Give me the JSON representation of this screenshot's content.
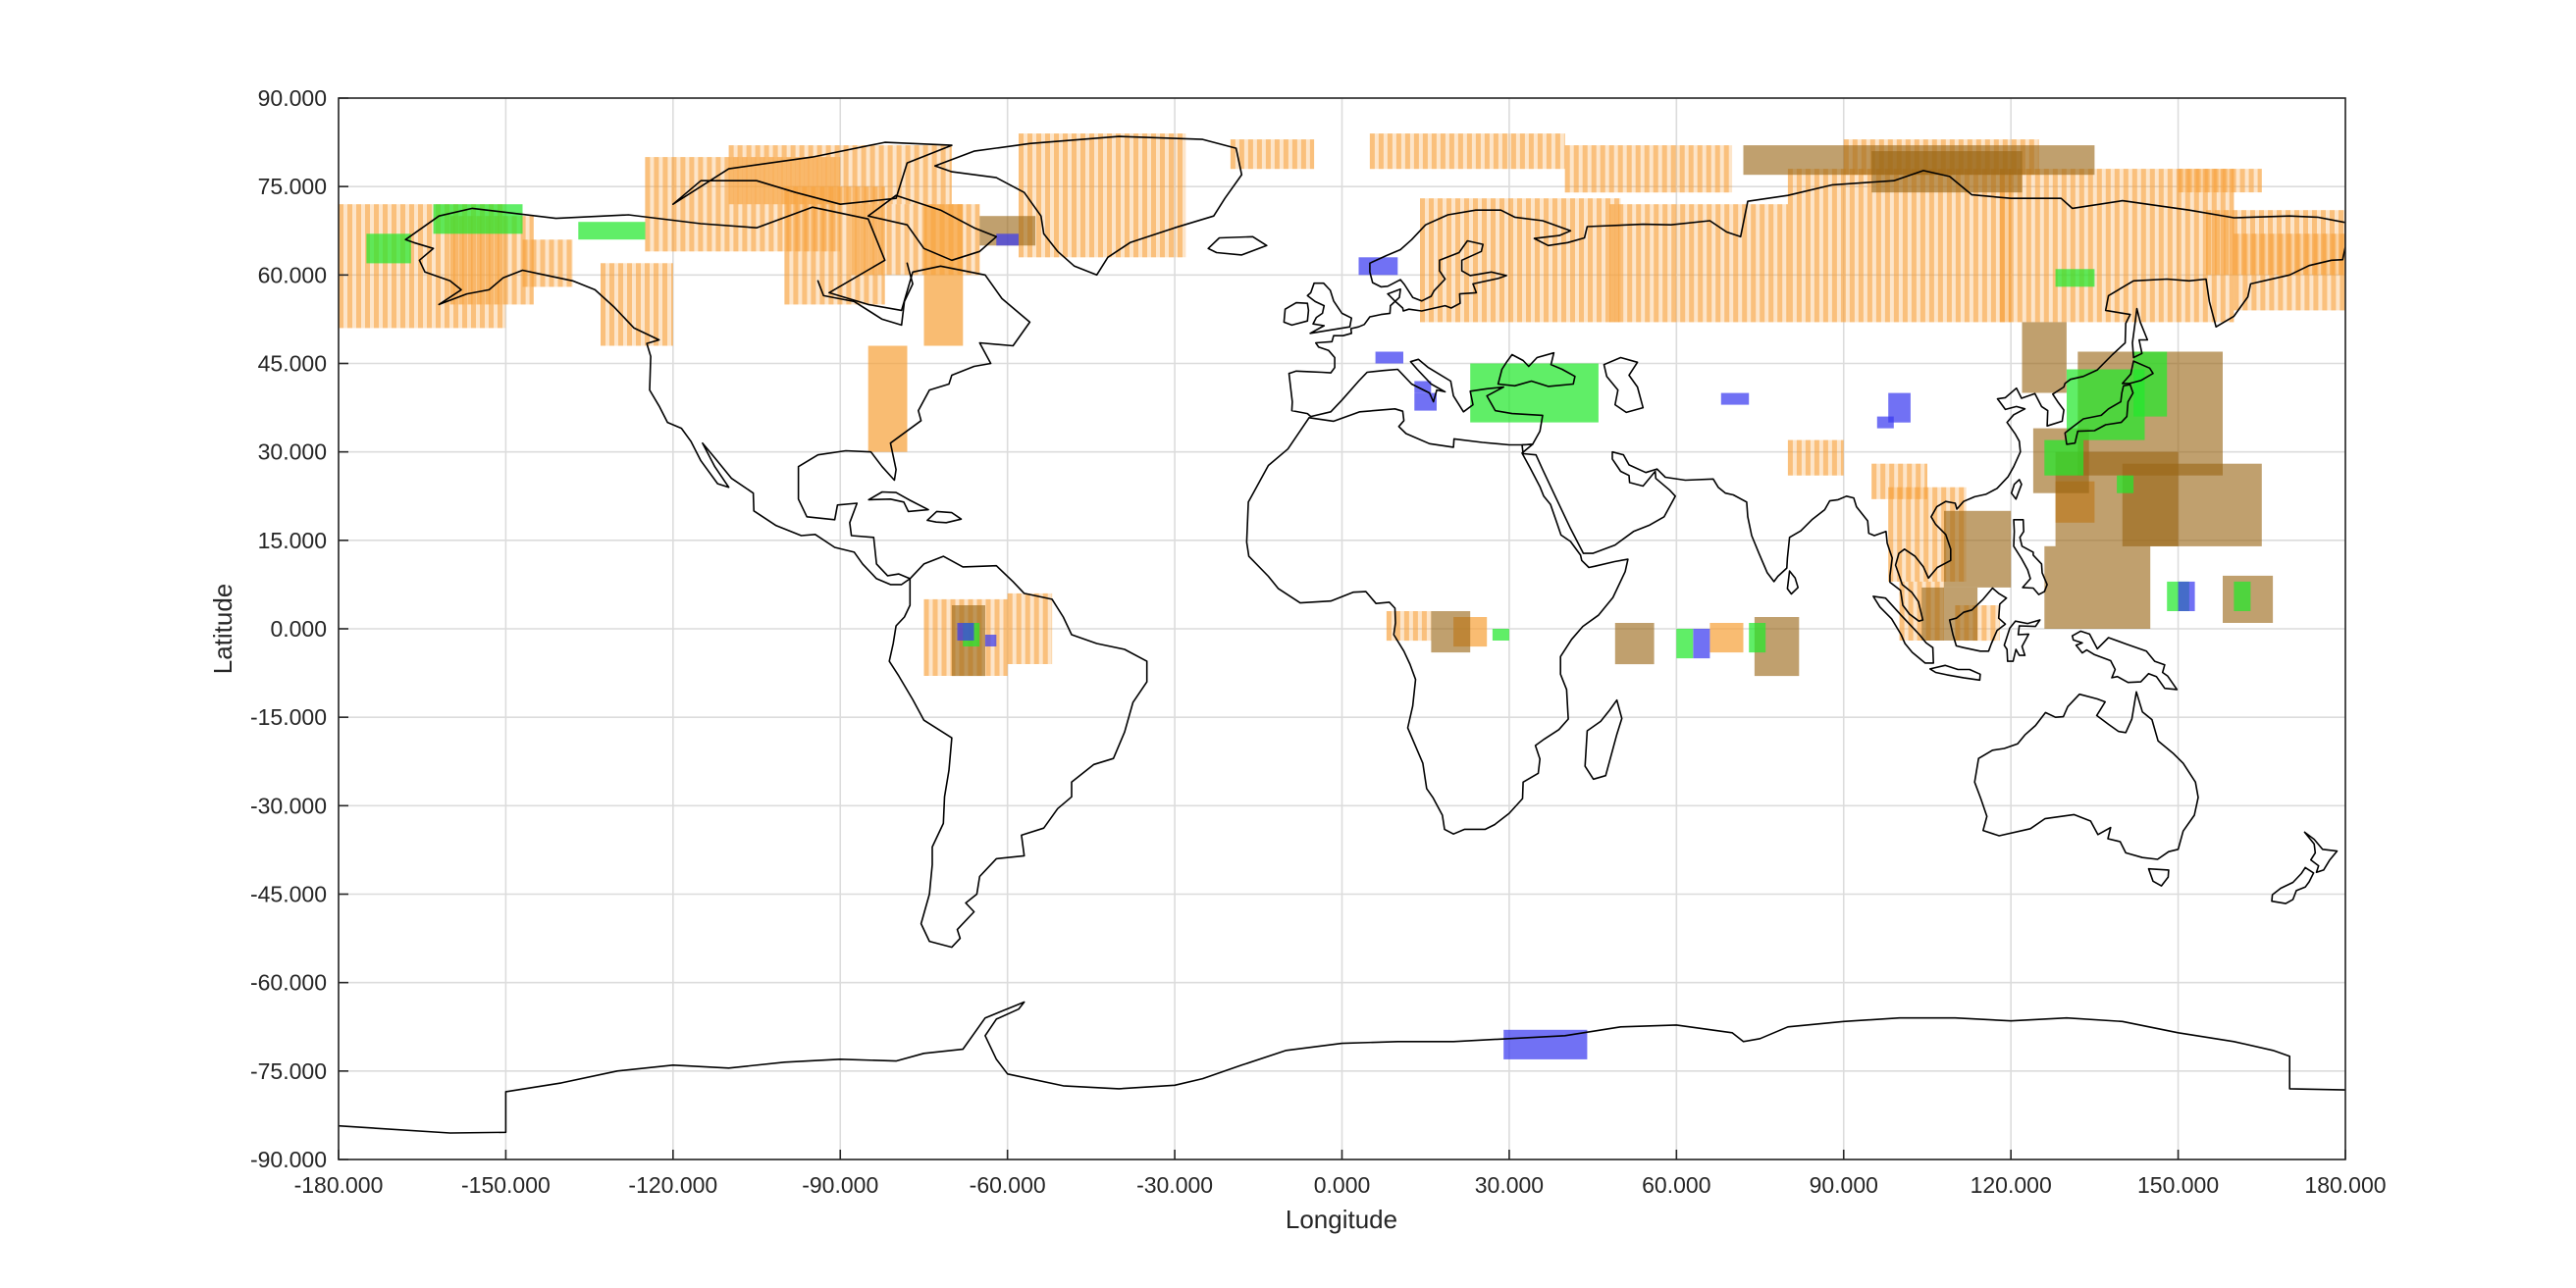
{
  "chart_data": {
    "type": "map",
    "xlabel": "Longitude",
    "ylabel": "Latitude",
    "xlim": [
      -180,
      180
    ],
    "ylim": [
      -90,
      90
    ],
    "x_ticks": [
      "-180.000",
      "-150.000",
      "-120.000",
      "-90.000",
      "-60.000",
      "-30.000",
      "0.000",
      "30.000",
      "60.000",
      "90.000",
      "120.000",
      "150.000",
      "180.000"
    ],
    "y_ticks": [
      "90.000",
      "75.000",
      "60.000",
      "45.000",
      "30.000",
      "15.000",
      "0.000",
      "-15.000",
      "-30.000",
      "-45.000",
      "-60.000",
      "-75.000",
      "-90.000"
    ],
    "grid": true,
    "legend": "none",
    "series": [
      {
        "color": "#f7a23c",
        "footprints": [
          [
            -180,
            51,
            -150,
            72
          ],
          [
            -160,
            55,
            -145,
            70
          ],
          [
            -147,
            58,
            -138,
            66
          ],
          [
            -133,
            48,
            -120,
            62
          ],
          [
            -125,
            64,
            -90,
            80
          ],
          [
            -110,
            72,
            -70,
            82
          ],
          [
            -100,
            55,
            -82,
            75
          ],
          [
            -88,
            60,
            -65,
            72
          ],
          [
            -85,
            30,
            -78,
            48
          ],
          [
            -75,
            48,
            -68,
            72
          ],
          [
            -58,
            63,
            -28,
            84
          ],
          [
            -20,
            78,
            -5,
            83
          ],
          [
            5,
            78,
            40,
            84
          ],
          [
            14,
            52,
            50,
            73
          ],
          [
            40,
            74,
            70,
            82
          ],
          [
            48,
            52,
            80,
            72
          ],
          [
            80,
            52,
            120,
            78
          ],
          [
            90,
            77,
            125,
            83
          ],
          [
            118,
            52,
            160,
            78
          ],
          [
            150,
            74,
            165,
            78
          ],
          [
            155,
            60,
            180,
            71
          ],
          [
            160,
            54,
            180,
            67
          ],
          [
            80,
            26,
            90,
            32
          ],
          [
            95,
            22,
            105,
            28
          ],
          [
            98,
            8,
            112,
            24
          ],
          [
            100,
            -2,
            108,
            8
          ],
          [
            110,
            -2,
            118,
            4
          ],
          [
            128,
            18,
            135,
            25
          ],
          [
            -75,
            -8,
            -60,
            5
          ],
          [
            -60,
            -6,
            -52,
            6
          ],
          [
            8,
            -2,
            16,
            3
          ],
          [
            20,
            -3,
            26,
            2
          ],
          [
            66,
            -4,
            72,
            1
          ]
        ]
      },
      {
        "color": "#996515",
        "footprints": [
          [
            -70,
            -8,
            -64,
            4
          ],
          [
            -65,
            65,
            -55,
            70
          ],
          [
            16,
            -4,
            23,
            3
          ],
          [
            49,
            -6,
            56,
            1
          ],
          [
            74,
            -8,
            82,
            2
          ],
          [
            72,
            77,
            135,
            82
          ],
          [
            95,
            74,
            122,
            81
          ],
          [
            122,
            40,
            130,
            52
          ],
          [
            124,
            23,
            134,
            34
          ],
          [
            132,
            26,
            158,
            47
          ],
          [
            128,
            14,
            150,
            30
          ],
          [
            140,
            14,
            165,
            28
          ],
          [
            108,
            7,
            120,
            20
          ],
          [
            104,
            -2,
            114,
            7
          ],
          [
            126,
            0,
            145,
            14
          ],
          [
            158,
            1,
            167,
            9
          ]
        ]
      },
      {
        "color": "#22e82c",
        "footprints": [
          [
            -175,
            62,
            -167,
            67
          ],
          [
            -163,
            67,
            -147,
            72
          ],
          [
            -137,
            66,
            -125,
            69
          ],
          [
            -68,
            -3,
            -65,
            1
          ],
          [
            23,
            35,
            46,
            45
          ],
          [
            126,
            26,
            133,
            32
          ],
          [
            130,
            32,
            144,
            44
          ],
          [
            142,
            36,
            148,
            47
          ],
          [
            139,
            23,
            142,
            26
          ],
          [
            128,
            58,
            135,
            61
          ],
          [
            148,
            3,
            152,
            8
          ],
          [
            160,
            3,
            163,
            8
          ],
          [
            60,
            -5,
            63,
            0
          ],
          [
            73,
            -4,
            76,
            1
          ],
          [
            27,
            -2,
            30,
            0
          ]
        ]
      },
      {
        "color": "#3a3af0",
        "footprints": [
          [
            -69,
            -2,
            -66,
            1
          ],
          [
            -64,
            -3,
            -62,
            -1
          ],
          [
            -62,
            65,
            -58,
            67
          ],
          [
            3,
            60,
            10,
            63
          ],
          [
            6,
            45,
            11,
            47
          ],
          [
            13,
            37,
            17,
            40
          ],
          [
            13,
            40,
            16,
            42
          ],
          [
            68,
            38,
            73,
            40
          ],
          [
            98,
            35,
            102,
            40
          ],
          [
            96,
            34,
            99,
            36
          ],
          [
            63,
            -5,
            66,
            0
          ],
          [
            150,
            3,
            153,
            8
          ],
          [
            29,
            -73,
            44,
            -68
          ]
        ]
      }
    ]
  },
  "land_colors": {
    "orange": "#f7a23c",
    "brown": "#996515",
    "green": "#22e82c",
    "blue": "#3a3af0",
    "coastline": "#000000"
  }
}
